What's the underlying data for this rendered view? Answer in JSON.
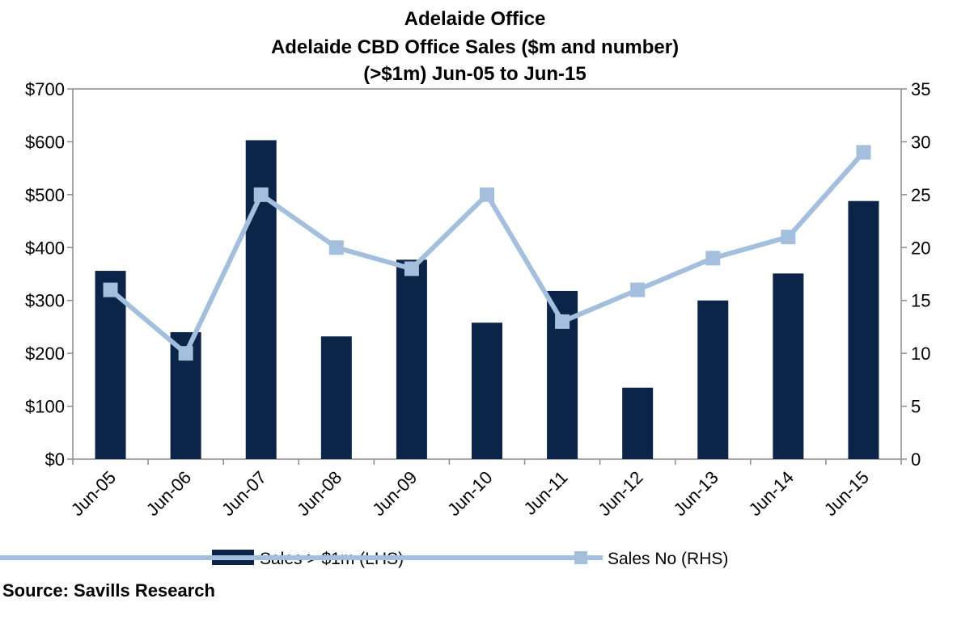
{
  "chart_data": {
    "type": "bar",
    "title": [
      "Adelaide Office",
      "Adelaide CBD Office Sales ($m and number)",
      "(>$1m) Jun-05 to Jun-15"
    ],
    "categories": [
      "Jun-05",
      "Jun-06",
      "Jun-07",
      "Jun-08",
      "Jun-09",
      "Jun-10",
      "Jun-11",
      "Jun-12",
      "Jun-13",
      "Jun-14",
      "Jun-15"
    ],
    "series": [
      {
        "name": "Sales > $1m (LHS)",
        "type": "bar",
        "axis": "left",
        "color": "#0b2447",
        "values": [
          356,
          240,
          603,
          232,
          377,
          258,
          318,
          135,
          300,
          351,
          488
        ]
      },
      {
        "name": "Sales No (RHS)",
        "type": "line",
        "axis": "right",
        "color": "#a3bfdd",
        "marker": "square",
        "values": [
          16,
          10,
          25,
          20,
          18,
          25,
          13,
          16,
          19,
          21,
          29
        ]
      }
    ],
    "y_left": {
      "ylim": [
        0,
        700
      ],
      "ticks": [
        0,
        100,
        200,
        300,
        400,
        500,
        600,
        700
      ],
      "tick_labels": [
        "$0",
        "$100",
        "$200",
        "$300",
        "$400",
        "$500",
        "$600",
        "$700"
      ]
    },
    "y_right": {
      "ylim": [
        0,
        35
      ],
      "ticks": [
        0,
        5,
        10,
        15,
        20,
        25,
        30,
        35
      ],
      "tick_labels": [
        "0",
        "5",
        "10",
        "15",
        "20",
        "25",
        "30",
        "35"
      ]
    },
    "grid": false,
    "legend": "bottom"
  },
  "source": "Source: Savills Research"
}
